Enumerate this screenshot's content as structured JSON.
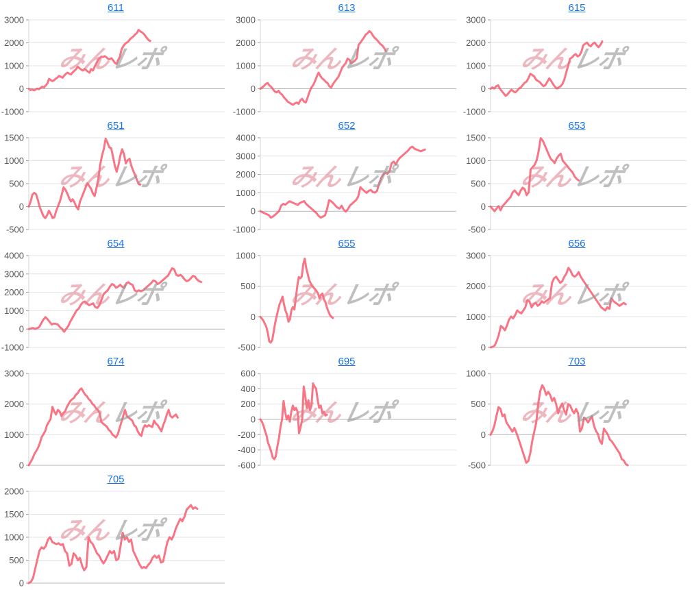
{
  "watermark": {
    "pink_text": "みん",
    "gray_text": "レポ",
    "pink_color": "#e07f8d",
    "gray_color": "#969696"
  },
  "styles": {
    "line_color": "#f85c70",
    "link_color": "#1a73e8",
    "grid_color": "#e4e4e4",
    "zero_line_color": "#b5b5b5",
    "axis_color": "#d5d5d5",
    "tick_color": "#9a9a9a",
    "tick_label_color": "#595959",
    "background": "#ffffff"
  },
  "chart_data": [
    {
      "type": "line",
      "title": "611",
      "ylim": [
        -1000,
        3000
      ],
      "yticks": [
        3000,
        2000,
        1000,
        0,
        -1000
      ],
      "span": 0.62,
      "grid": true,
      "values": [
        0,
        -60,
        -30,
        -70,
        -40,
        10,
        -20,
        40,
        90,
        60,
        140,
        230,
        430,
        380,
        330,
        370,
        440,
        490,
        560,
        520,
        480,
        570,
        650,
        700,
        660,
        620,
        710,
        780,
        850,
        960,
        900,
        840,
        790,
        860,
        810,
        750,
        700,
        860,
        790,
        950,
        1100,
        1250,
        1330,
        1400,
        1380,
        1420,
        1370,
        1300,
        1280,
        1330,
        1240,
        1130,
        1080,
        1250,
        1400,
        1720,
        1850,
        1950,
        2010,
        2060,
        2160,
        2220,
        2280,
        2360,
        2420,
        2560,
        2510,
        2460,
        2400,
        2310,
        2210,
        2120,
        2080
      ]
    },
    {
      "type": "line",
      "title": "613",
      "ylim": [
        -1000,
        3000
      ],
      "yticks": [
        3000,
        2000,
        1000,
        0,
        -1000
      ],
      "span": 0.64,
      "grid": true,
      "values": [
        0,
        60,
        120,
        210,
        250,
        140,
        80,
        -30,
        -120,
        -160,
        -90,
        -200,
        -260,
        -380,
        -460,
        -560,
        -610,
        -660,
        -700,
        -640,
        -600,
        -660,
        -500,
        -440,
        -560,
        -600,
        -380,
        -150,
        50,
        150,
        320,
        520,
        700,
        560,
        450,
        390,
        300,
        240,
        100,
        60,
        210,
        320,
        420,
        530,
        720,
        920,
        1020,
        1120,
        1310,
        1260,
        1100,
        1160,
        1220,
        1320,
        1900,
        2010,
        2120,
        2230,
        2360,
        2420,
        2510,
        2440,
        2300,
        2210,
        2140,
        2050,
        1950,
        1890,
        1790,
        1640
      ]
    },
    {
      "type": "line",
      "title": "615",
      "ylim": [
        -1000,
        3000
      ],
      "yticks": [
        3000,
        2000,
        1000,
        0,
        -1000
      ],
      "span": 0.57,
      "grid": true,
      "values": [
        0,
        60,
        10,
        110,
        150,
        -10,
        -110,
        -210,
        -310,
        -240,
        -140,
        -40,
        -110,
        -160,
        -90,
        10,
        60,
        160,
        260,
        310,
        460,
        650,
        600,
        540,
        400,
        340,
        290,
        190,
        110,
        160,
        310,
        450,
        340,
        200,
        90,
        10,
        60,
        110,
        210,
        410,
        720,
        1010,
        1310,
        1360,
        1460,
        1510,
        1410,
        1460,
        1610,
        1900,
        1960,
        2010,
        1890,
        1850,
        1960,
        2010,
        1900,
        1810,
        1910,
        2060
      ]
    },
    {
      "type": "line",
      "title": "651",
      "ylim": [
        -500,
        1500
      ],
      "yticks": [
        1500,
        1000,
        500,
        0,
        -500
      ],
      "span": 0.57,
      "grid": true,
      "values": [
        0,
        110,
        260,
        300,
        270,
        140,
        -10,
        -110,
        -210,
        -250,
        -190,
        -90,
        -160,
        -250,
        -230,
        -90,
        10,
        110,
        260,
        420,
        370,
        290,
        190,
        110,
        160,
        90,
        -10,
        -60,
        110,
        210,
        310,
        410,
        510,
        450,
        390,
        290,
        230,
        410,
        610,
        910,
        1110,
        1260,
        1480,
        1390,
        1290,
        1270,
        1090,
        890,
        760,
        910,
        1110,
        1250,
        1140,
        940,
        1010,
        1040,
        890,
        790,
        690,
        590,
        490,
        480
      ]
    },
    {
      "type": "line",
      "title": "652",
      "ylim": [
        -1000,
        4000
      ],
      "yticks": [
        4000,
        3000,
        2000,
        1000,
        0,
        -1000
      ],
      "span": 0.84,
      "grid": true,
      "values": [
        0,
        -60,
        -110,
        -160,
        -210,
        -350,
        -300,
        -200,
        -100,
        10,
        310,
        400,
        350,
        450,
        540,
        490,
        440,
        390,
        340,
        450,
        500,
        550,
        390,
        290,
        190,
        90,
        -10,
        -110,
        -260,
        -350,
        -290,
        -240,
        110,
        600,
        540,
        440,
        300,
        200,
        140,
        300,
        90,
        -20,
        110,
        310,
        410,
        510,
        610,
        810,
        1310,
        1190,
        1090,
        1000,
        1110,
        1160,
        1040,
        1010,
        1110,
        1510,
        1810,
        2010,
        2110,
        2040,
        2160,
        2610,
        2700,
        2550,
        2760,
        2910,
        3010,
        3110,
        3210,
        3310,
        3460,
        3510,
        3400,
        3350,
        3310,
        3260,
        3310,
        3360
      ]
    },
    {
      "type": "line",
      "title": "653",
      "ylim": [
        -500,
        1500
      ],
      "yticks": [
        1500,
        1000,
        500,
        0,
        -500
      ],
      "span": 0.45,
      "grid": true,
      "values": [
        0,
        -50,
        -100,
        -40,
        10,
        -80,
        10,
        60,
        110,
        160,
        210,
        310,
        350,
        300,
        250,
        350,
        410,
        380,
        250,
        310,
        810,
        860,
        910,
        1010,
        1210,
        1490,
        1440,
        1340,
        1240,
        1140,
        1040,
        1000,
        950,
        1050,
        1110,
        1150,
        1000,
        950,
        900,
        840,
        790,
        740,
        650,
        600,
        570
      ]
    },
    {
      "type": "line",
      "title": "654",
      "ylim": [
        -1000,
        4000
      ],
      "yticks": [
        4000,
        3000,
        2000,
        1000,
        0,
        -1000
      ],
      "span": 0.88,
      "grid": true,
      "values": [
        0,
        30,
        60,
        10,
        50,
        110,
        310,
        510,
        650,
        540,
        400,
        250,
        300,
        280,
        250,
        100,
        10,
        -150,
        10,
        160,
        410,
        610,
        810,
        1010,
        1110,
        1310,
        1450,
        1500,
        1400,
        1300,
        1350,
        1400,
        1200,
        1150,
        1300,
        1600,
        1900,
        2010,
        2110,
        2310,
        2450,
        2400,
        2250,
        2310,
        2410,
        2300,
        2250,
        2500,
        2550,
        2450,
        2400,
        2100,
        2050,
        2110,
        2060,
        2110,
        2210,
        2310,
        2410,
        2510,
        2650,
        2600,
        2450,
        2510,
        2610,
        2710,
        2810,
        2910,
        3110,
        3310,
        3250,
        2950,
        2900,
        2950,
        2850,
        2700,
        2610,
        2650,
        2760,
        2900,
        2850,
        2700,
        2610,
        2560
      ]
    },
    {
      "type": "line",
      "title": "655",
      "ylim": [
        -500,
        1000
      ],
      "yticks": [
        1000,
        500,
        0,
        -500
      ],
      "span": 0.37,
      "grid": true,
      "values": [
        0,
        -30,
        -60,
        -110,
        -160,
        -260,
        -400,
        -420,
        -380,
        -250,
        -100,
        10,
        110,
        210,
        260,
        330,
        200,
        100,
        40,
        -80,
        -40,
        110,
        160,
        120,
        310,
        510,
        650,
        630,
        660,
        860,
        950,
        800,
        700,
        600,
        550,
        500,
        480,
        450,
        420,
        380,
        300,
        360,
        380,
        280,
        240,
        150,
        90,
        30,
        0,
        -20
      ]
    },
    {
      "type": "line",
      "title": "656",
      "ylim": [
        0,
        3000
      ],
      "yticks": [
        3000,
        2000,
        1000,
        0
      ],
      "span": 0.69,
      "grid": true,
      "values": [
        0,
        20,
        60,
        210,
        410,
        700,
        650,
        560,
        710,
        910,
        1010,
        950,
        1060,
        1210,
        1150,
        1110,
        1210,
        1310,
        1550,
        1500,
        1310,
        1410,
        1460,
        1360,
        1410,
        1510,
        1460,
        1510,
        1560,
        1610,
        2110,
        2260,
        2310,
        2210,
        2110,
        2160,
        2310,
        2410,
        2600,
        2510,
        2360,
        2310,
        2360,
        2460,
        2310,
        2210,
        2110,
        2010,
        1910,
        1810,
        1710,
        1610,
        1510,
        1410,
        1310,
        1260,
        1210,
        1310,
        1260,
        1610,
        1510,
        1460,
        1410,
        1360,
        1410,
        1450,
        1410
      ]
    },
    {
      "type": "line",
      "title": "674",
      "ylim": [
        0,
        3000
      ],
      "yticks": [
        3000,
        2000,
        1000,
        0
      ],
      "span": 0.76,
      "grid": true,
      "values": [
        0,
        110,
        210,
        360,
        460,
        560,
        710,
        910,
        1010,
        1110,
        1310,
        1410,
        1510,
        1910,
        1760,
        1660,
        1810,
        1760,
        1610,
        1710,
        1760,
        1910,
        2010,
        2110,
        2160,
        2210,
        2310,
        2360,
        2460,
        2510,
        2410,
        2310,
        2260,
        2160,
        2110,
        2010,
        1960,
        1860,
        1810,
        1710,
        1410,
        1360,
        1310,
        1260,
        1160,
        1110,
        1010,
        960,
        910,
        1010,
        1210,
        1410,
        1610,
        1810,
        1610,
        1560,
        1510,
        1460,
        1310,
        1260,
        1110,
        1010,
        960,
        1210,
        1310,
        1260,
        1310,
        1280,
        1250,
        1460,
        1360,
        1310,
        1210,
        1110,
        1310,
        1460,
        1660,
        1810,
        1610,
        1560,
        1610,
        1660,
        1560
      ]
    },
    {
      "type": "line",
      "title": "695",
      "ylim": [
        -600,
        600
      ],
      "yticks": [
        600,
        400,
        200,
        0,
        -200,
        -400,
        -600
      ],
      "span": 0.34,
      "grid": true,
      "values": [
        0,
        -30,
        -80,
        -150,
        -210,
        -310,
        -360,
        -420,
        -500,
        -520,
        -480,
        -350,
        -250,
        -100,
        0,
        240,
        100,
        0,
        50,
        -30,
        100,
        180,
        120,
        150,
        100,
        -180,
        -100,
        0,
        430,
        300,
        150,
        250,
        120,
        180,
        470,
        430,
        400,
        250,
        150,
        180,
        80,
        100,
        50,
        60
      ]
    },
    {
      "type": "line",
      "title": "703",
      "ylim": [
        -500,
        1000
      ],
      "yticks": [
        1000,
        500,
        0,
        -500
      ],
      "span": 0.7,
      "grid": true,
      "values": [
        0,
        60,
        160,
        310,
        450,
        420,
        300,
        330,
        200,
        150,
        100,
        50,
        110,
        30,
        -60,
        -160,
        -260,
        -360,
        -460,
        -430,
        -300,
        -100,
        50,
        200,
        510,
        710,
        810,
        750,
        650,
        700,
        650,
        550,
        600,
        500,
        350,
        450,
        510,
        400,
        330,
        500,
        480,
        400,
        350,
        420,
        350,
        50,
        110,
        280,
        250,
        200,
        250,
        300,
        150,
        60,
        10,
        -100,
        -150,
        100,
        50,
        0,
        -80,
        -110,
        -160,
        -210,
        -260,
        -310,
        -400,
        -420,
        -480,
        -500
      ]
    },
    {
      "type": "line",
      "title": "705",
      "ylim": [
        0,
        2000
      ],
      "yticks": [
        2000,
        1500,
        1000,
        500,
        0
      ],
      "span": 0.86,
      "grid": true,
      "values": [
        0,
        30,
        110,
        310,
        510,
        710,
        780,
        750,
        810,
        950,
        1000,
        900,
        870,
        850,
        870,
        830,
        850,
        700,
        650,
        380,
        420,
        650,
        600,
        500,
        550,
        380,
        280,
        350,
        1000,
        900,
        850,
        750,
        650,
        600,
        500,
        430,
        500,
        600,
        700,
        650,
        700,
        500,
        530,
        800,
        1100,
        950,
        1000,
        900,
        950,
        700,
        600,
        500,
        400,
        330,
        350,
        330,
        400,
        450,
        550,
        600,
        550,
        600,
        450,
        470,
        700,
        900,
        1000,
        950,
        1050,
        1200,
        1300,
        1400,
        1350,
        1450,
        1600,
        1650,
        1700,
        1620,
        1650,
        1620
      ]
    }
  ]
}
